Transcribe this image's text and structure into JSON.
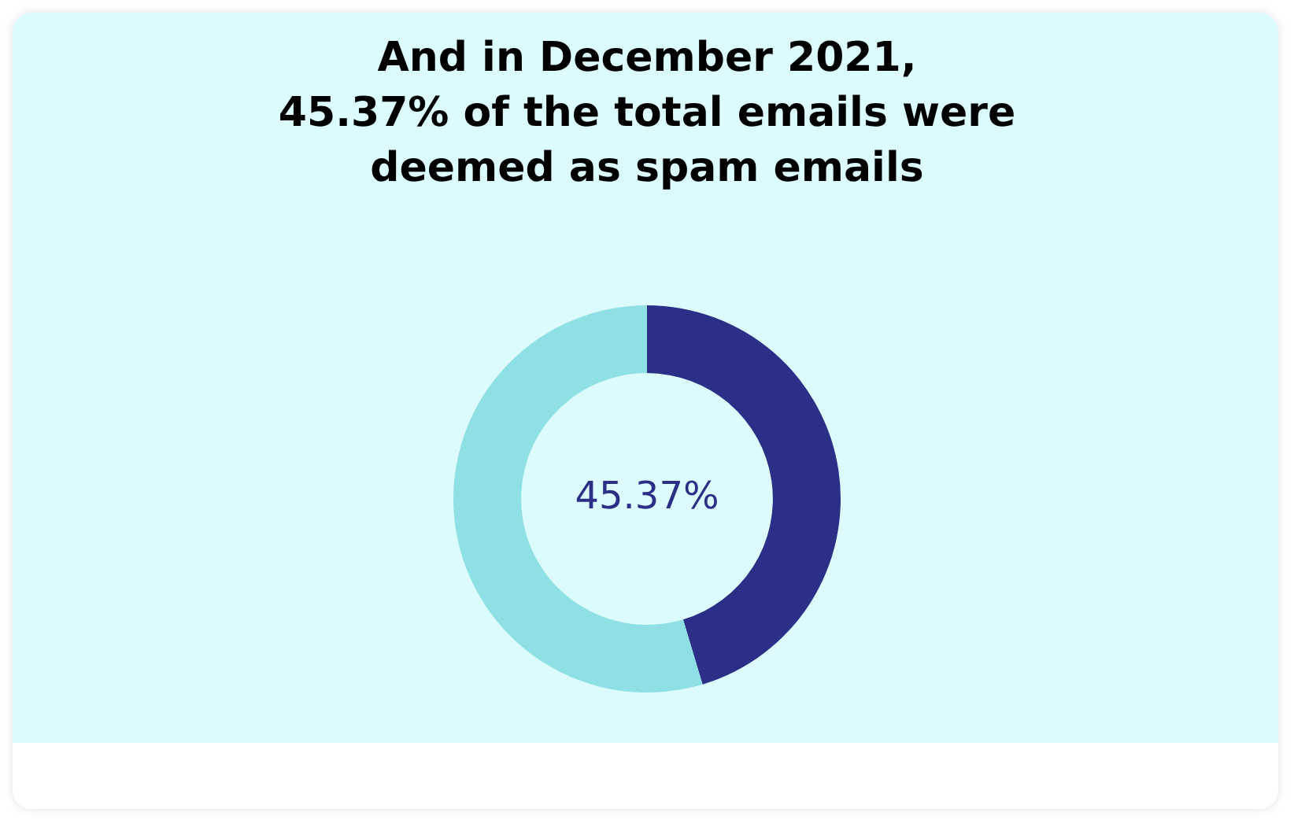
{
  "chart_data": {
    "type": "donut",
    "title": "And in December 2021,\n45.37% of the total emails were\ndeemed as spam emails",
    "categories": [
      null,
      null
    ],
    "values": [
      45.37,
      54.63
    ],
    "colors": [
      "#2b2f87",
      "#8ee0e4"
    ],
    "value_labels": [
      "45.37%",
      null
    ],
    "legend": false
  }
}
